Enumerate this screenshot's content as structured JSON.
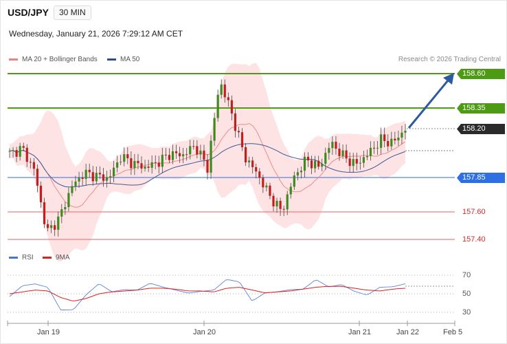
{
  "header": {
    "symbol": "USD/JPY",
    "timeframe": "30 MIN",
    "datetime": "Wednesday, January 21, 2026 7:29:12 AM CET"
  },
  "legend": {
    "bollinger": "MA 20 + Bollinger Bands",
    "ma50": "MA 50",
    "credit": "Research © 2026 Trading Central",
    "bollinger_color": "#f08080",
    "ma50_color": "#2c4f8c"
  },
  "levels": {
    "r2": "158.60",
    "r1": "158.35",
    "last": "158.20",
    "pivot": "157.85",
    "s1": "157.60",
    "s2": "157.40"
  },
  "rsi_panel": {
    "rsi_label": "RSI",
    "ma_label": "9MA",
    "rsi_color": "#4b72d6",
    "ma_color": "#e0201b",
    "ticks": [
      "70",
      "50",
      "30"
    ]
  },
  "x_axis": [
    "Jan 19",
    "Jan 20",
    "Jan 21",
    "Jan 22",
    "Feb 5"
  ],
  "chart_data": {
    "type": "line",
    "title": "",
    "xlabel": "",
    "ylabel": "",
    "ylim": [
      157.35,
      158.65
    ],
    "x": [
      "Jan 19",
      "Jan 20",
      "Jan 21",
      "Jan 22",
      "Feb 5"
    ],
    "price_path": [
      158.02,
      158.06,
      157.9,
      157.45,
      157.55,
      157.78,
      157.88,
      157.86,
      157.84,
      158.0,
      157.95,
      157.92,
      157.96,
      158.02,
      158.01,
      158.08,
      157.92,
      158.55,
      158.3,
      158.0,
      157.88,
      157.72,
      157.6,
      157.85,
      157.98,
      157.92,
      158.1,
      158.0,
      157.94,
      158.02,
      158.12,
      158.1,
      158.2
    ],
    "rsi_values": [
      47,
      58,
      62,
      55,
      35,
      30,
      52,
      58,
      55,
      52,
      56,
      60,
      58,
      54,
      50,
      54,
      52,
      68,
      60,
      45,
      48,
      55,
      52,
      57,
      64,
      58,
      60,
      52,
      50,
      55,
      60,
      58
    ],
    "rsi_ma_values": [
      50,
      52,
      54,
      53,
      46,
      42,
      45,
      50,
      52,
      53,
      54,
      56,
      56,
      55,
      53,
      53,
      52,
      56,
      57,
      54,
      51,
      52,
      53,
      55,
      57,
      58,
      58,
      56,
      54,
      53,
      55,
      56
    ],
    "series": [
      {
        "name": "MA 20 + Bollinger Bands"
      },
      {
        "name": "MA 50"
      },
      {
        "name": "RSI"
      },
      {
        "name": "9MA"
      }
    ],
    "levels": [
      158.6,
      158.35,
      158.2,
      157.85,
      157.6,
      157.4
    ]
  }
}
